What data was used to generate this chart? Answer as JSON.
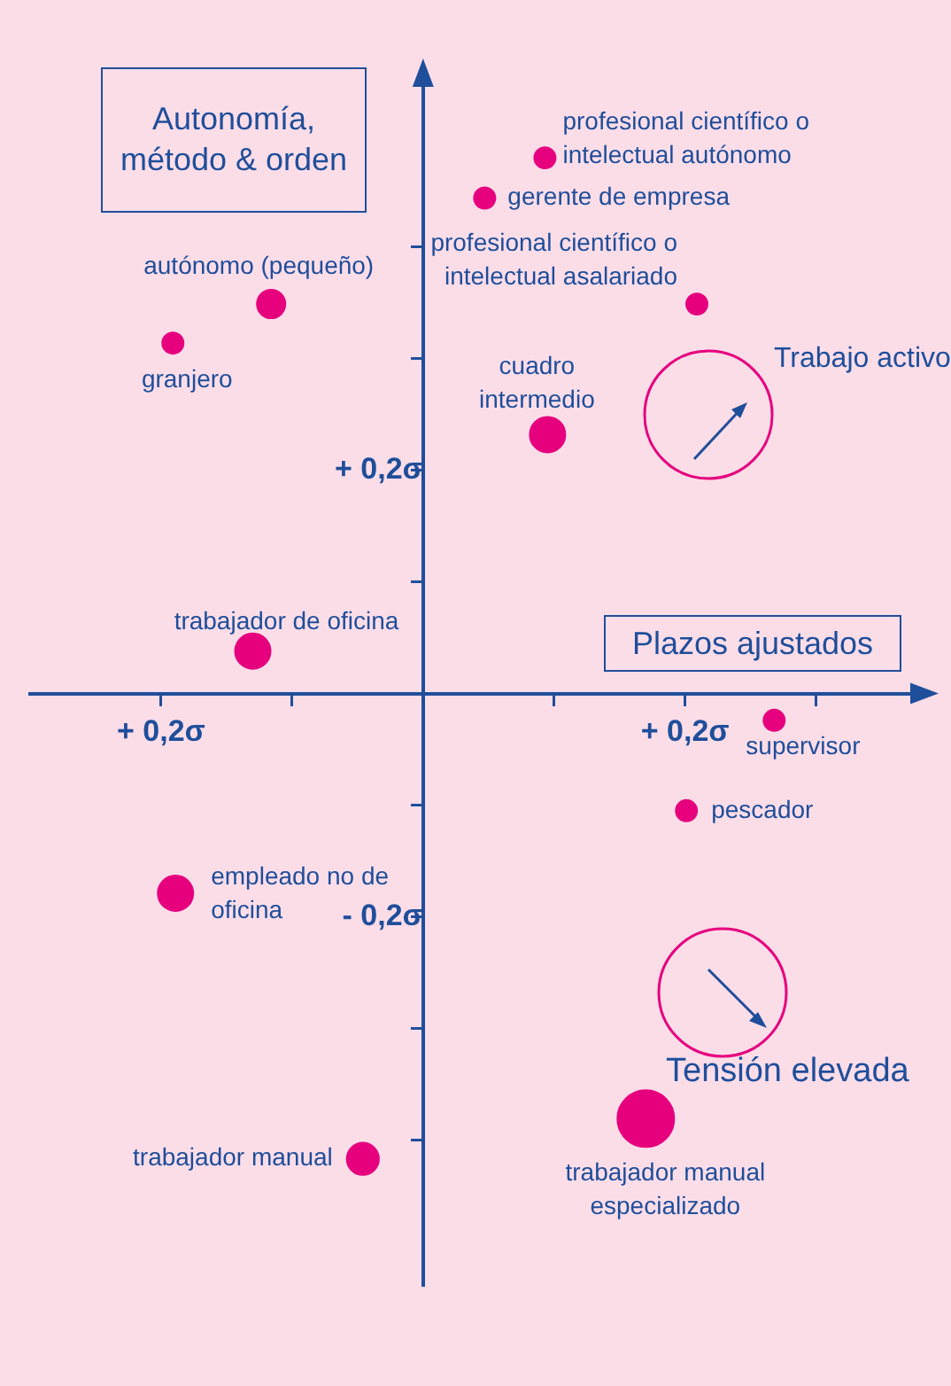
{
  "chart_data": {
    "type": "bubble",
    "xlabel": "Plazos ajustados",
    "ylabel": "Autonomía, método & orden",
    "x": [
      0.093,
      0.047,
      0.209,
      -0.116,
      -0.191,
      0.095,
      -0.13,
      0.268,
      0.201,
      -0.189,
      -0.046,
      0.17
    ],
    "values": [
      0.48,
      0.444,
      0.349,
      0.349,
      0.314,
      0.232,
      0.038,
      -0.024,
      -0.105,
      -0.179,
      -0.417,
      -0.381
    ],
    "sizes": [
      0.14,
      0.14,
      0.14,
      0.25,
      0.14,
      0.39,
      0.39,
      0.14,
      0.14,
      0.39,
      0.32,
      1
    ],
    "color": "#e6007e",
    "marker": "circle",
    "legend": false,
    "grid": false,
    "xlim": [
      -0.3,
      0.38
    ],
    "ylim": [
      -0.53,
      0.55
    ],
    "xticks": [
      {
        "value": -0.2,
        "label": "+ 0,2σ"
      },
      {
        "value": -0.1,
        "label": null
      },
      {
        "value": 0.1,
        "label": null
      },
      {
        "value": 0.2,
        "label": "+ 0,2σ"
      },
      {
        "value": 0.3,
        "label": null
      }
    ],
    "yticks": [
      {
        "value": 0.4,
        "label": null
      },
      {
        "value": 0.3,
        "label": null
      },
      {
        "value": 0.2,
        "label": "+ 0,2σ"
      },
      {
        "value": 0.1,
        "label": null
      },
      {
        "value": -0.1,
        "label": null
      },
      {
        "value": -0.2,
        "label": "- 0,2σ"
      },
      {
        "value": -0.3,
        "label": null
      },
      {
        "value": -0.4,
        "label": null
      }
    ],
    "annotations": [
      {
        "text": "profesional científico o intelectual autónomo",
        "x": 0.093,
        "y": 0.48
      },
      {
        "text": "gerente de empresa",
        "x": 0.047,
        "y": 0.444
      },
      {
        "text": "profesional científico o intelectual asalariado",
        "x": 0.209,
        "y": 0.349
      },
      {
        "text": "autónomo (pequeño)",
        "x": -0.116,
        "y": 0.349
      },
      {
        "text": "granjero",
        "x": -0.191,
        "y": 0.314
      },
      {
        "text": "cuadro intermedio",
        "x": 0.095,
        "y": 0.232
      },
      {
        "text": "trabajador de oficina",
        "x": -0.13,
        "y": 0.038
      },
      {
        "text": "supervisor",
        "x": 0.268,
        "y": -0.024
      },
      {
        "text": "pescador",
        "x": 0.201,
        "y": -0.105
      },
      {
        "text": "empleado no de oficina",
        "x": -0.189,
        "y": -0.179
      },
      {
        "text": "trabajador manual",
        "x": -0.046,
        "y": -0.417
      },
      {
        "text": "trabajador manual especializado",
        "x": 0.17,
        "y": -0.381
      },
      "Trabajo activo",
      "Tensión elevada"
    ]
  }
}
